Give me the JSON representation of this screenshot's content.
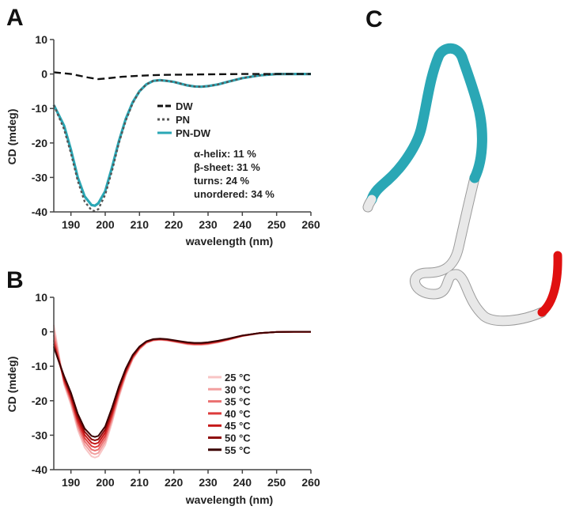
{
  "chart_data": [
    {
      "panel": "A",
      "type": "line",
      "xlabel": "wavelength (nm)",
      "ylabel": "CD (mdeg)",
      "xlim": [
        185,
        260
      ],
      "ylim": [
        -40,
        10
      ],
      "xticks": [
        190,
        200,
        210,
        220,
        230,
        240,
        250,
        260
      ],
      "yticks": [
        10,
        0,
        -10,
        -20,
        -30,
        -40
      ],
      "legend_position": "middle-right",
      "grid": false,
      "series": [
        {
          "name": "DW",
          "color": "#111111",
          "dash": "dashed",
          "x": [
            185,
            190,
            195,
            198,
            200,
            205,
            210,
            215,
            220,
            225,
            230,
            235,
            240,
            245,
            250,
            255,
            260
          ],
          "y": [
            0.5,
            0,
            -1.0,
            -1.5,
            -1.3,
            -0.8,
            -0.5,
            -0.3,
            -0.2,
            -0.15,
            -0.1,
            -0.05,
            0,
            0,
            0,
            0,
            0
          ]
        },
        {
          "name": "PN",
          "color": "#555555",
          "dash": "dotted",
          "x": [
            185,
            188,
            190,
            192,
            194,
            196,
            197,
            198,
            200,
            202,
            204,
            206,
            208,
            210,
            212,
            214,
            216,
            218,
            220,
            222,
            224,
            226,
            228,
            230,
            233,
            236,
            240,
            245,
            250,
            255,
            260
          ],
          "y": [
            -9,
            -16,
            -23,
            -31,
            -37,
            -39.5,
            -39.8,
            -39.2,
            -35,
            -28,
            -20,
            -13.5,
            -8.5,
            -5,
            -3,
            -2,
            -1.8,
            -2,
            -2.3,
            -2.8,
            -3.3,
            -3.6,
            -3.7,
            -3.5,
            -3,
            -2.2,
            -1.2,
            -0.4,
            0,
            0,
            0
          ]
        },
        {
          "name": "PN-DW",
          "color": "#2aa7b5",
          "dash": "solid",
          "x": [
            185,
            188,
            190,
            192,
            194,
            196,
            197,
            198,
            200,
            202,
            204,
            206,
            208,
            210,
            212,
            214,
            216,
            218,
            220,
            222,
            224,
            226,
            228,
            230,
            233,
            236,
            240,
            245,
            250,
            255,
            260
          ],
          "y": [
            -9,
            -15,
            -22,
            -30,
            -35.5,
            -38,
            -38.2,
            -37.5,
            -34,
            -27,
            -19.5,
            -13,
            -8.2,
            -5,
            -3,
            -2,
            -1.8,
            -2,
            -2.3,
            -2.8,
            -3.3,
            -3.6,
            -3.7,
            -3.5,
            -3,
            -2.2,
            -1.2,
            -0.4,
            0,
            0,
            0
          ]
        }
      ],
      "annotations": [
        "α-helix: 11 %",
        "β-sheet: 31 %",
        "turns: 24 %",
        "unordered: 34 %"
      ]
    },
    {
      "panel": "B",
      "type": "line",
      "xlabel": "wavelength (nm)",
      "ylabel": "CD (mdeg)",
      "xlim": [
        185,
        260
      ],
      "ylim": [
        -40,
        10
      ],
      "xticks": [
        190,
        200,
        210,
        220,
        230,
        240,
        250,
        260
      ],
      "yticks": [
        10,
        0,
        -10,
        -20,
        -30,
        -40
      ],
      "legend_position": "lower-right",
      "grid": false,
      "series": [
        {
          "name": "25 °C",
          "color": "#f8c5c5",
          "min_y": -36.5,
          "start_y": 2.0
        },
        {
          "name": "30 °C",
          "color": "#f2a0a0",
          "min_y": -35.5,
          "start_y": 0.5
        },
        {
          "name": "35 °C",
          "color": "#ea7070",
          "min_y": -34.5,
          "start_y": -1.0
        },
        {
          "name": "40 °C",
          "color": "#dd3b3b",
          "min_y": -33.5,
          "start_y": -2.5
        },
        {
          "name": "45 °C",
          "color": "#c51616",
          "min_y": -32.5,
          "start_y": -3.5
        },
        {
          "name": "50 °C",
          "color": "#8e0a0a",
          "min_y": -31.5,
          "start_y": -4.2
        },
        {
          "name": "55 °C",
          "color": "#3a0000",
          "min_y": -30.5,
          "start_y": -4.5
        }
      ]
    }
  ],
  "panels": {
    "a": {
      "letter": "A"
    },
    "b": {
      "letter": "B"
    },
    "c": {
      "letter": "C"
    }
  },
  "structure_colors": {
    "helix": "#2aa7b5",
    "coil": "#e8e8e8",
    "terminal": "#e01010"
  }
}
